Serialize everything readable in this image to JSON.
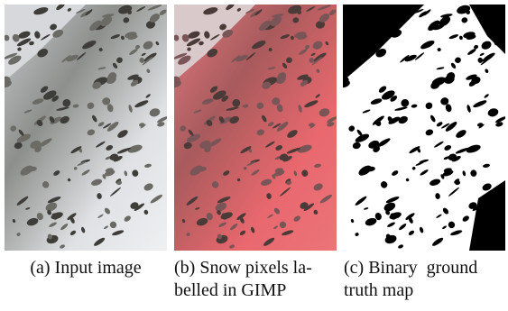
{
  "figures": [
    {
      "label": "(a)",
      "caption_lines": [
        "Input image"
      ]
    },
    {
      "label": "(b)",
      "caption_lines": [
        "Snow pixels la-",
        "belled in GIMP"
      ]
    },
    {
      "label": "(c)",
      "caption_lines": [
        "Binary  ground",
        "truth map"
      ]
    }
  ]
}
